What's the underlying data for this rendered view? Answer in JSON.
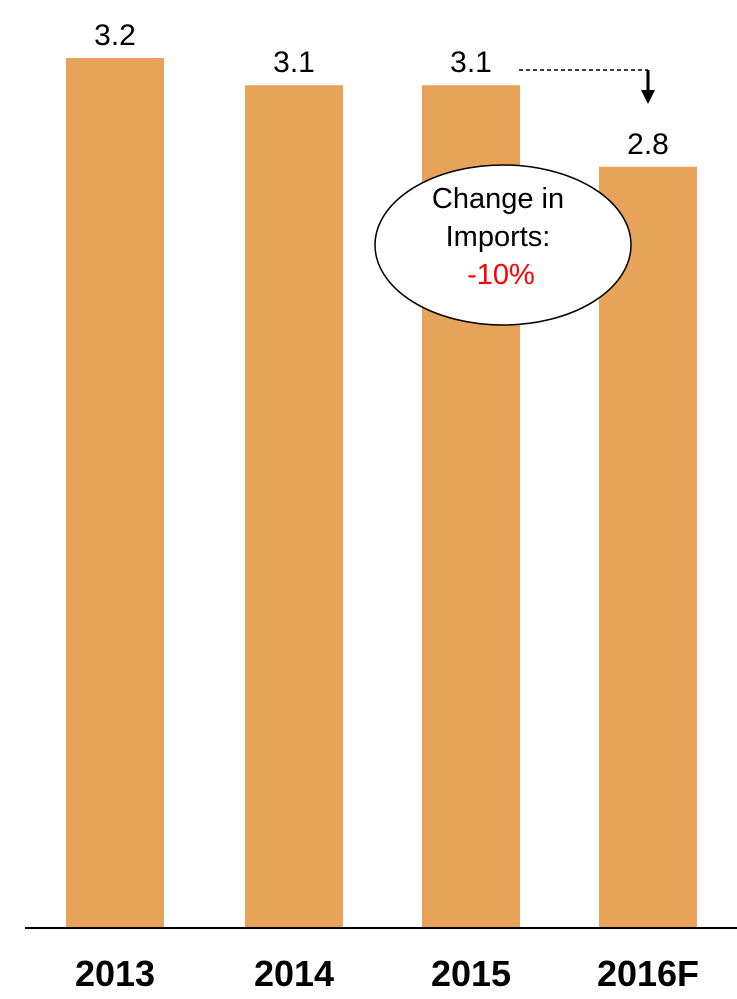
{
  "chart_data": {
    "type": "bar",
    "categories": [
      "2013",
      "2014",
      "2015",
      "2016F"
    ],
    "values": [
      3.2,
      3.1,
      3.1,
      2.8
    ],
    "value_labels": [
      "3.2",
      "3.1",
      "3.1",
      "2.8"
    ],
    "ylim": [
      0,
      3.2
    ],
    "grid": false,
    "title": "",
    "xlabel": "",
    "ylabel": ""
  },
  "colors": {
    "bar": "#E8A35A",
    "axis": "#000000",
    "change": "#FF0000"
  },
  "callout": {
    "line1": "Change in",
    "line2": "Imports:",
    "change": "-10%"
  }
}
